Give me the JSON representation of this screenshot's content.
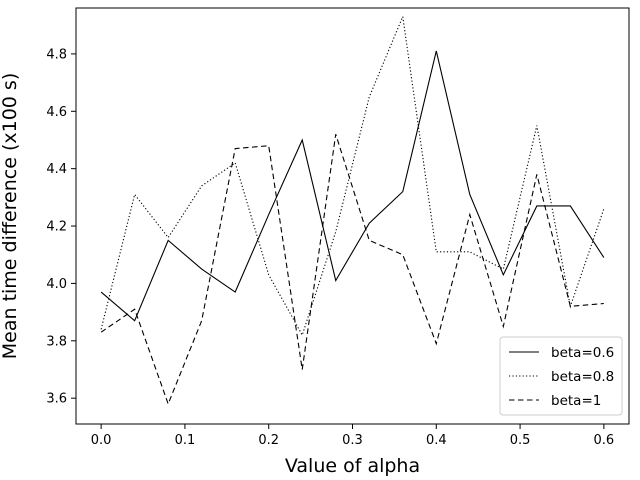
{
  "chart_data": {
    "type": "line",
    "title": "",
    "xlabel": "Value of alpha",
    "ylabel": "Mean time difference (x100 s)",
    "xlim": [
      -0.03,
      0.63
    ],
    "ylim": [
      3.51,
      4.96
    ],
    "xticks": [
      0.0,
      0.1,
      0.2,
      0.3,
      0.4,
      0.5,
      0.6
    ],
    "xtick_labels": [
      "0.0",
      "0.1",
      "0.2",
      "0.3",
      "0.4",
      "0.5",
      "0.6"
    ],
    "yticks": [
      3.6,
      3.8,
      4.0,
      4.2,
      4.4,
      4.6,
      4.8
    ],
    "ytick_labels": [
      "3.6",
      "3.8",
      "4.0",
      "4.2",
      "4.4",
      "4.6",
      "4.8"
    ],
    "grid": false,
    "legend_position": "bottom-right",
    "x": [
      0.0,
      0.04,
      0.08,
      0.12,
      0.16,
      0.2,
      0.24,
      0.28,
      0.32,
      0.36,
      0.4,
      0.44,
      0.48,
      0.52,
      0.56,
      0.6
    ],
    "series": [
      {
        "name": "beta=0.6",
        "style": "solid",
        "color": "#000000",
        "values": [
          3.97,
          3.87,
          4.15,
          4.05,
          3.97,
          4.24,
          4.5,
          4.01,
          4.21,
          4.32,
          4.81,
          4.31,
          4.03,
          4.27,
          4.27,
          4.09
        ]
      },
      {
        "name": "beta=0.8",
        "style": "dotted",
        "color": "#000000",
        "values": [
          3.84,
          4.31,
          4.16,
          4.34,
          4.42,
          4.03,
          3.82,
          4.18,
          4.65,
          4.93,
          4.11,
          4.11,
          4.05,
          4.55,
          3.92,
          4.26
        ]
      },
      {
        "name": "beta=1",
        "style": "dashed",
        "color": "#000000",
        "values": [
          3.83,
          3.91,
          3.58,
          3.87,
          4.47,
          4.48,
          3.7,
          4.52,
          4.15,
          4.1,
          3.79,
          4.24,
          3.85,
          4.38,
          3.92,
          3.93
        ]
      }
    ]
  }
}
